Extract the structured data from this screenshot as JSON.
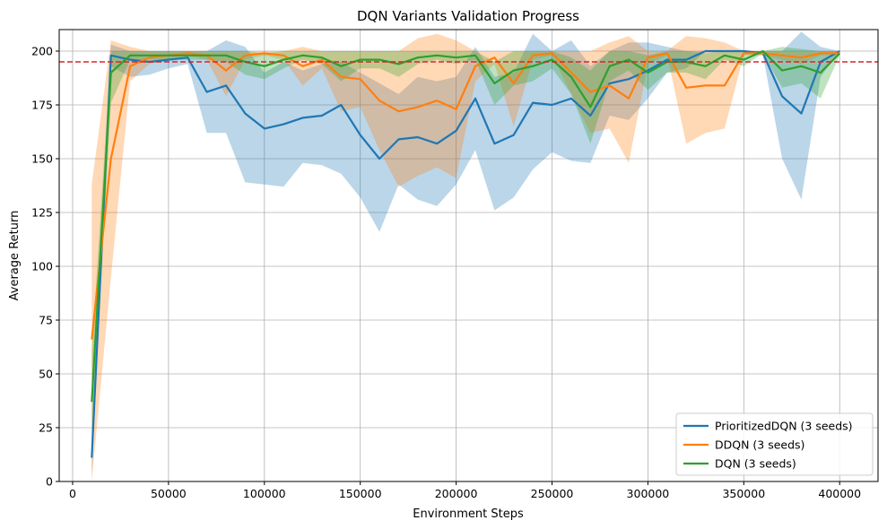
{
  "chart_data": {
    "type": "line",
    "title": "DQN Variants Validation Progress",
    "xlabel": "Environment Steps",
    "ylabel": "Average Return",
    "xlim": [
      -7000,
      420000
    ],
    "ylim": [
      0,
      210
    ],
    "xticks": [
      0,
      50000,
      100000,
      150000,
      200000,
      250000,
      300000,
      350000,
      400000
    ],
    "yticks": [
      0,
      25,
      50,
      75,
      100,
      125,
      150,
      175,
      200
    ],
    "grid": true,
    "legend_position": "lower-right",
    "threshold": {
      "value": 195,
      "style": "dashed",
      "color": "#d62728"
    },
    "x": [
      10000,
      20000,
      30000,
      40000,
      50000,
      60000,
      70000,
      80000,
      90000,
      100000,
      110000,
      120000,
      130000,
      140000,
      150000,
      160000,
      170000,
      180000,
      190000,
      200000,
      210000,
      220000,
      230000,
      240000,
      250000,
      260000,
      270000,
      280000,
      290000,
      300000,
      310000,
      320000,
      330000,
      340000,
      350000,
      360000,
      370000,
      380000,
      390000,
      400000
    ],
    "series": [
      {
        "name": "PrioritizedDQN (3 seeds)",
        "color": "#1f77b4",
        "mean": [
          11,
          198,
          196,
          195,
          196,
          197,
          181,
          184,
          171,
          164,
          166,
          169,
          170,
          175,
          161,
          150,
          159,
          160,
          157,
          163,
          178,
          157,
          161,
          176,
          175,
          178,
          170,
          185,
          187,
          191,
          196,
          196,
          200,
          200,
          200,
          199,
          179,
          171,
          195,
          200
        ],
        "upper": [
          20,
          203,
          200,
          200,
          200,
          200,
          200,
          205,
          202,
          190,
          195,
          191,
          194,
          195,
          190,
          185,
          180,
          188,
          186,
          188,
          202,
          188,
          190,
          208,
          200,
          205,
          193,
          200,
          204,
          204,
          202,
          200,
          200,
          200,
          200,
          200,
          200,
          209,
          202,
          200
        ],
        "lower": [
          2,
          193,
          188,
          189,
          192,
          194,
          162,
          162,
          139,
          138,
          137,
          148,
          147,
          143,
          132,
          116,
          138,
          131,
          128,
          138,
          154,
          126,
          132,
          145,
          153,
          149,
          148,
          170,
          168,
          178,
          190,
          192,
          200,
          200,
          200,
          198,
          150,
          131,
          188,
          200
        ]
      },
      {
        "name": "DDQN (3 seeds)",
        "color": "#ff7f0e",
        "mean": [
          66,
          150,
          193,
          197,
          198,
          199,
          198,
          191,
          198,
          199,
          198,
          193,
          196,
          188,
          187,
          177,
          172,
          174,
          177,
          173,
          193,
          197,
          185,
          198,
          199,
          190,
          181,
          184,
          178,
          197,
          199,
          183,
          184,
          184,
          199,
          199,
          198,
          197,
          199,
          199
        ],
        "upper": [
          138,
          205,
          202,
          200,
          200,
          200,
          200,
          200,
          200,
          200,
          200,
          202,
          200,
          200,
          200,
          200,
          200,
          206,
          208,
          205,
          200,
          200,
          200,
          200,
          200,
          200,
          200,
          204,
          207,
          200,
          200,
          207,
          206,
          204,
          200,
          200,
          200,
          200,
          200,
          200
        ],
        "lower": [
          0,
          95,
          186,
          194,
          196,
          198,
          196,
          179,
          196,
          198,
          196,
          184,
          192,
          172,
          174,
          154,
          137,
          142,
          146,
          141,
          186,
          194,
          165,
          196,
          198,
          180,
          162,
          164,
          148,
          194,
          198,
          157,
          162,
          164,
          198,
          198,
          196,
          194,
          198,
          198
        ]
      },
      {
        "name": "DQN (3 seeds)",
        "color": "#2ca02c",
        "mean": [
          37,
          190,
          198,
          198,
          198,
          198,
          198,
          198,
          195,
          193,
          196,
          198,
          197,
          193,
          196,
          196,
          194,
          197,
          198,
          197,
          198,
          185,
          191,
          193,
          196,
          188,
          174,
          193,
          196,
          190,
          195,
          195,
          193,
          198,
          196,
          200,
          191,
          193,
          190,
          199
        ],
        "upper": [
          60,
          200,
          200,
          200,
          200,
          200,
          200,
          200,
          200,
          199,
          200,
          200,
          200,
          200,
          200,
          200,
          200,
          200,
          200,
          200,
          200,
          195,
          200,
          200,
          200,
          197,
          191,
          200,
          200,
          198,
          200,
          200,
          199,
          200,
          200,
          200,
          202,
          201,
          200,
          200
        ],
        "lower": [
          14,
          176,
          196,
          196,
          196,
          196,
          196,
          195,
          189,
          187,
          192,
          196,
          194,
          186,
          192,
          192,
          188,
          194,
          196,
          194,
          196,
          175,
          184,
          186,
          192,
          180,
          157,
          186,
          191,
          182,
          190,
          190,
          187,
          196,
          193,
          199,
          183,
          185,
          178,
          198
        ]
      }
    ]
  }
}
